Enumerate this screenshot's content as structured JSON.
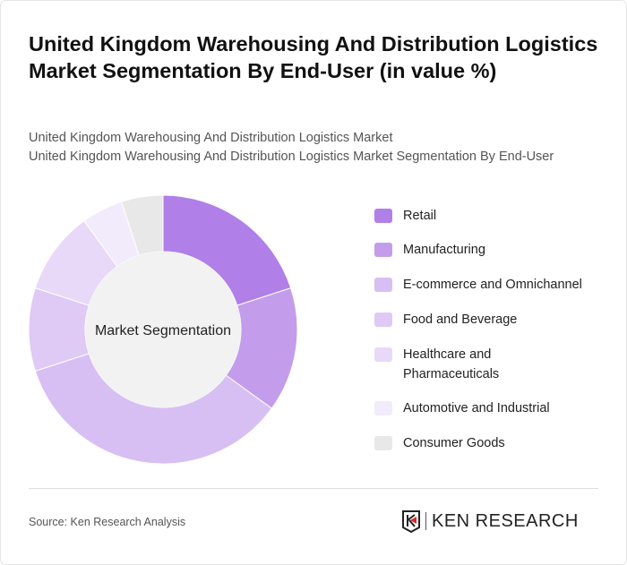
{
  "title": "United Kingdom Warehousing And Distribution Logistics Market Segmentation By End-User (in value %)",
  "subtitle1": "United Kingdom Warehousing And Distribution Logistics Market",
  "subtitle2": "United Kingdom Warehousing And Distribution Logistics Market Segmentation By End-User",
  "source": "Source: Ken Research Analysis",
  "logo_text": "KEN RESEARCH",
  "chart_data": {
    "type": "pie",
    "donut": true,
    "center_label": "Market Segmentation",
    "legend_position": "right",
    "categories": [
      "Retail",
      "Manufacturing",
      "E-commerce and Omnichannel",
      "Food and Beverage",
      "Healthcare and Pharmaceuticals",
      "Automotive and Industrial",
      "Consumer Goods"
    ],
    "values": [
      20,
      15,
      35,
      10,
      10,
      5,
      5
    ],
    "colors": [
      "#b07fe8",
      "#c39dec",
      "#d8bff3",
      "#dfc9f5",
      "#e8d9f8",
      "#f2ebfb",
      "#e8e8e8"
    ]
  }
}
